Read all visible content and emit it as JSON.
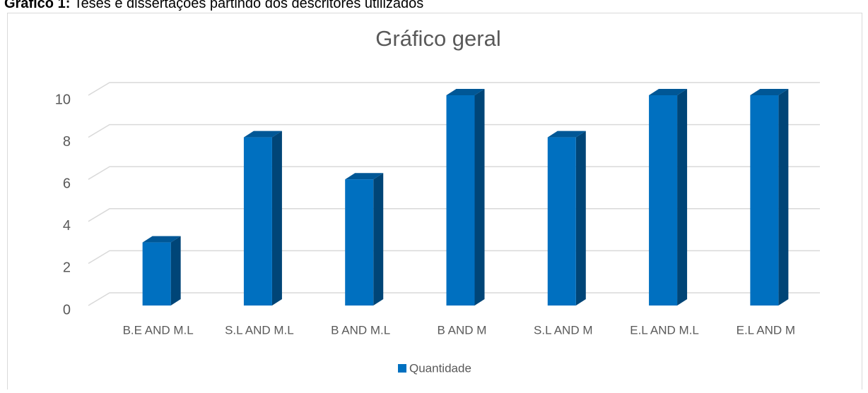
{
  "caption": {
    "label": "Gráfico 1:",
    "text": "Teses e dissertações partindo dos descritores utilizados"
  },
  "chart_data": {
    "type": "bar3d",
    "title": "Gráfico geral",
    "categories": [
      "B.E AND M.L",
      "S.L AND M.L",
      "B AND M.L",
      "B AND M",
      "S.L AND M",
      "E.L AND M.L",
      "E.L AND M"
    ],
    "series": [
      {
        "name": "Quantidade",
        "color": "#0070c0",
        "values": [
          3,
          8,
          6,
          10,
          8,
          10,
          10
        ]
      }
    ],
    "ylim": [
      0,
      10
    ],
    "yticks": [
      0,
      2,
      4,
      6,
      8,
      10
    ],
    "grid": true,
    "legend": "bottom"
  }
}
